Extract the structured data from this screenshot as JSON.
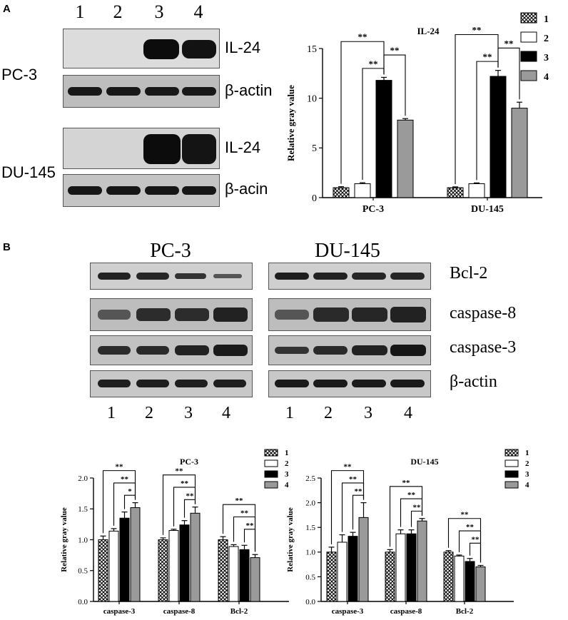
{
  "panel_a": {
    "letter": "A",
    "lanes": [
      "1",
      "2",
      "3",
      "4"
    ],
    "cell_lines": [
      "PC-3",
      "DU-145"
    ],
    "blot_labels": [
      "IL-24",
      "β-actin",
      "IL-24",
      "β-acin"
    ]
  },
  "panel_b": {
    "letter": "B",
    "blot_titles": [
      "PC-3",
      "DU-145"
    ],
    "blot_labels": [
      "Bcl-2",
      "caspase-8",
      "caspase-3",
      "β-actin"
    ],
    "lanes_left": [
      "1",
      "2",
      "3",
      "4"
    ],
    "lanes_right": [
      "1",
      "2",
      "3",
      "4"
    ]
  },
  "colors": {
    "s1": "#ffffff",
    "s2": "#ffffff",
    "s3": "#000000",
    "s4": "#9a9a9a",
    "axis": "#000000"
  },
  "chart_data": [
    {
      "type": "bar",
      "title": "IL-24",
      "ylabel": "Relative gray value",
      "xlabel": "",
      "ylim": [
        0,
        15
      ],
      "yticks": [
        0,
        5,
        10,
        15
      ],
      "categories": [
        "PC-3",
        "DU-145"
      ],
      "series": [
        {
          "name": "1",
          "values": [
            1.0,
            1.0
          ],
          "errors": [
            0.1,
            0.08
          ]
        },
        {
          "name": "2",
          "values": [
            1.4,
            1.4
          ],
          "errors": [
            0.1,
            0.08
          ]
        },
        {
          "name": "3",
          "values": [
            11.8,
            12.2
          ],
          "errors": [
            0.3,
            0.6
          ]
        },
        {
          "name": "4",
          "values": [
            7.8,
            9.0
          ],
          "errors": [
            0.15,
            0.6
          ]
        }
      ],
      "significance": [
        {
          "category": 0,
          "from": 0,
          "to": 2,
          "label": "**"
        },
        {
          "category": 0,
          "from": 1,
          "to": 2,
          "label": "**"
        },
        {
          "category": 0,
          "from": 2,
          "to": 3,
          "label": "**"
        },
        {
          "category": 1,
          "from": 0,
          "to": 2,
          "label": "**"
        },
        {
          "category": 1,
          "from": 1,
          "to": 2,
          "label": "**"
        },
        {
          "category": 1,
          "from": 2,
          "to": 3,
          "label": "**"
        }
      ],
      "legend": "top-right"
    },
    {
      "type": "bar",
      "title": "PC-3",
      "ylabel": "Relative gray value",
      "xlabel": "",
      "ylim": [
        0,
        2.0
      ],
      "yticks": [
        "0.0",
        "0.5",
        "1.0",
        "1.5",
        "2.0"
      ],
      "categories": [
        "caspase-3",
        "caspase-8",
        "Bcl-2"
      ],
      "series": [
        {
          "name": "1",
          "values": [
            1.0,
            1.0,
            1.0
          ],
          "errors": [
            0.06,
            0.03,
            0.05
          ]
        },
        {
          "name": "2",
          "values": [
            1.14,
            1.15,
            0.89
          ],
          "errors": [
            0.04,
            0.02,
            0.03
          ]
        },
        {
          "name": "3",
          "values": [
            1.35,
            1.24,
            0.84
          ],
          "errors": [
            0.1,
            0.07,
            0.07
          ]
        },
        {
          "name": "4",
          "values": [
            1.52,
            1.43,
            0.71
          ],
          "errors": [
            0.08,
            0.1,
            0.05
          ]
        }
      ],
      "significance": [
        {
          "category": 0,
          "from": 0,
          "to": 3,
          "label": "**"
        },
        {
          "category": 0,
          "from": 1,
          "to": 3,
          "label": "**"
        },
        {
          "category": 0,
          "from": 2,
          "to": 3,
          "label": "*"
        },
        {
          "category": 1,
          "from": 0,
          "to": 3,
          "label": "**"
        },
        {
          "category": 1,
          "from": 1,
          "to": 3,
          "label": "**"
        },
        {
          "category": 1,
          "from": 2,
          "to": 3,
          "label": "**"
        },
        {
          "category": 2,
          "from": 0,
          "to": 3,
          "label": "**"
        },
        {
          "category": 2,
          "from": 1,
          "to": 3,
          "label": "**"
        },
        {
          "category": 2,
          "from": 2,
          "to": 3,
          "label": "**"
        }
      ],
      "legend": "top-right"
    },
    {
      "type": "bar",
      "title": "DU-145",
      "ylabel": "Relative gray value",
      "xlabel": "",
      "ylim": [
        0,
        2.5
      ],
      "yticks": [
        "0.0",
        "0.5",
        "1.0",
        "1.5",
        "2.0",
        "2.5"
      ],
      "categories": [
        "caspase-3",
        "caspase-8",
        "Bcl-2"
      ],
      "series": [
        {
          "name": "1",
          "values": [
            1.0,
            1.0,
            1.0
          ],
          "errors": [
            0.1,
            0.05,
            0.03
          ]
        },
        {
          "name": "2",
          "values": [
            1.2,
            1.37,
            0.92
          ],
          "errors": [
            0.15,
            0.08,
            0.02
          ]
        },
        {
          "name": "3",
          "values": [
            1.32,
            1.37,
            0.81
          ],
          "errors": [
            0.08,
            0.08,
            0.06
          ]
        },
        {
          "name": "4",
          "values": [
            1.7,
            1.63,
            0.7
          ],
          "errors": [
            0.3,
            0.05,
            0.03
          ]
        }
      ],
      "significance": [
        {
          "category": 0,
          "from": 0,
          "to": 3,
          "label": "**"
        },
        {
          "category": 0,
          "from": 1,
          "to": 3,
          "label": "**"
        },
        {
          "category": 0,
          "from": 2,
          "to": 3,
          "label": "**"
        },
        {
          "category": 1,
          "from": 0,
          "to": 3,
          "label": "**"
        },
        {
          "category": 1,
          "from": 1,
          "to": 3,
          "label": "**"
        },
        {
          "category": 1,
          "from": 2,
          "to": 3,
          "label": "**"
        },
        {
          "category": 2,
          "from": 0,
          "to": 3,
          "label": "**"
        },
        {
          "category": 2,
          "from": 1,
          "to": 3,
          "label": "**"
        },
        {
          "category": 2,
          "from": 2,
          "to": 3,
          "label": "**"
        }
      ],
      "legend": "top-right"
    }
  ]
}
